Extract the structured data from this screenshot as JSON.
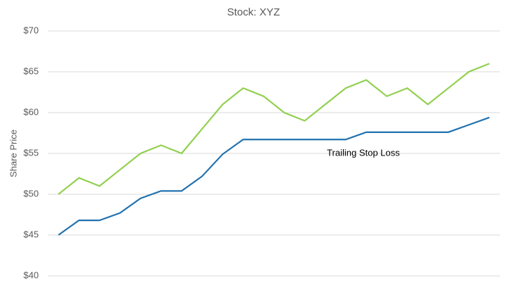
{
  "chart_data": {
    "type": "line",
    "title": "Stock: XYZ",
    "y_label": "Share Price",
    "categories": [
      null,
      null,
      null,
      null,
      null,
      null,
      null,
      null,
      null,
      null,
      null,
      null,
      null,
      null,
      null,
      null,
      null,
      null,
      null,
      null,
      null,
      null
    ],
    "series": [
      {
        "color": "#92d050",
        "values": [
          50,
          52,
          51,
          53,
          55,
          56,
          55,
          58,
          61,
          63,
          62,
          60,
          59,
          61,
          63,
          64,
          62,
          63,
          61,
          63,
          65,
          66
        ]
      },
      {
        "color": "#2272b0",
        "values": [
          45,
          46.8,
          46.8,
          47.7,
          49.5,
          50.4,
          50.4,
          52.2,
          54.9,
          56.7,
          56.7,
          56.7,
          56.7,
          56.7,
          56.7,
          57.6,
          57.6,
          57.6,
          57.6,
          57.6,
          58.5,
          59.4
        ]
      }
    ],
    "annotations": [
      {
        "text": "Trailing Stop Loss",
        "x": 14,
        "y": 55
      }
    ],
    "ylim": [
      40,
      70
    ],
    "yticks": [
      {
        "value": 40,
        "label": "$40"
      },
      {
        "value": 45,
        "label": "$45"
      },
      {
        "value": 50,
        "label": "$50"
      },
      {
        "value": 55,
        "label": "$55"
      },
      {
        "value": 60,
        "label": "$60"
      },
      {
        "value": 65,
        "label": "$65"
      },
      {
        "value": 70,
        "label": "$70"
      }
    ],
    "grid": true
  }
}
